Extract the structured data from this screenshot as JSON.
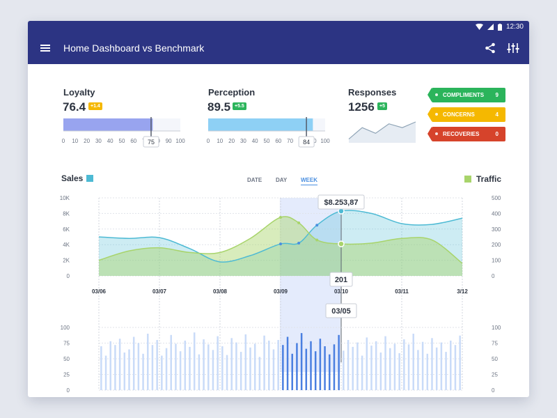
{
  "status": {
    "time": "12:30"
  },
  "header": {
    "title": "Home Dashboard vs Benchmark"
  },
  "kpis": {
    "loyalty": {
      "label": "Loyalty",
      "value": "76.4",
      "delta": "+1.4",
      "bar_fraction": 0.764,
      "marker": 75,
      "marker_label": "75",
      "bar_color": "#98a4ef",
      "badge_color": "#f5b800"
    },
    "perception": {
      "label": "Perception",
      "value": "89.5",
      "delta": "+5.5",
      "bar_fraction": 0.895,
      "marker": 84,
      "marker_label": "84",
      "bar_color": "#8ed0f5",
      "badge_color": "#2bb45b"
    },
    "responses": {
      "label": "Responses",
      "value": "1256",
      "delta": "+5",
      "badge_color": "#2bb45b",
      "sparkline": [
        2,
        8,
        5,
        10,
        8,
        11
      ]
    },
    "scale_ticks": [
      "0",
      "10",
      "20",
      "30",
      "40",
      "50",
      "60",
      "70",
      "80",
      "90",
      "100"
    ]
  },
  "tags": [
    {
      "label": "COMPLIMENTS",
      "count": "9",
      "color": "#2bb45b"
    },
    {
      "label": "CONCERNS",
      "count": "4",
      "color": "#f5b800"
    },
    {
      "label": "RECOVERIES",
      "count": "0",
      "color": "#d6432b"
    }
  ],
  "section": {
    "sales_label": "Sales",
    "sales_color": "#4dbad4",
    "traffic_label": "Traffic",
    "traffic_color": "#a8d46b",
    "tabs": [
      "DATE",
      "DAY",
      "WEEK"
    ],
    "active_tab": "WEEK"
  },
  "chart_data": [
    {
      "type": "area",
      "categories": [
        "03/06",
        "03/07",
        "03/08",
        "03/09",
        "03/10",
        "03/11",
        "3/12"
      ],
      "y_left_ticks": [
        "0",
        "2K",
        "4K",
        "6K",
        "8K",
        "10K"
      ],
      "y_right_ticks": [
        "0",
        "100",
        "200",
        "300",
        "400",
        "500"
      ],
      "ylim_left": [
        0,
        10000
      ],
      "ylim_right": [
        0,
        500
      ],
      "series": [
        {
          "name": "Sales",
          "x": [
            0,
            0.5,
            1,
            1.5,
            2,
            2.5,
            3,
            3.3,
            3.6,
            4,
            4.5,
            5,
            5.5,
            6
          ],
          "values": [
            5000,
            4800,
            4900,
            3500,
            1800,
            2600,
            4100,
            4200,
            6500,
            8300,
            8000,
            6700,
            6600,
            7400
          ]
        },
        {
          "name": "Traffic",
          "x": [
            0,
            0.5,
            1,
            1.5,
            2,
            2.5,
            3,
            3.3,
            3.6,
            4,
            4.5,
            5,
            5.5,
            6
          ],
          "values": [
            100,
            160,
            180,
            150,
            150,
            240,
            375,
            340,
            230,
            205,
            210,
            240,
            230,
            80
          ]
        }
      ],
      "tooltip_sales": "$8.253,87",
      "tooltip_traffic": "201",
      "highlight_label": "03/05",
      "highlight_x": 3.7
    },
    {
      "type": "bar",
      "y_ticks": [
        "0",
        "25",
        "50",
        "75",
        "100"
      ],
      "ylim": [
        0,
        100
      ],
      "values": [
        70,
        55,
        78,
        72,
        82,
        60,
        65,
        85,
        75,
        58,
        90,
        72,
        80,
        55,
        67,
        88,
        74,
        62,
        79,
        69,
        92,
        57,
        81,
        73,
        64,
        86,
        70,
        56,
        83,
        76,
        61,
        89,
        68,
        74,
        53,
        87,
        79,
        65,
        80,
        72,
        85,
        58,
        75,
        91,
        66,
        78,
        62,
        82,
        70,
        57,
        73,
        88,
        63,
        80,
        69,
        76,
        55,
        84,
        71,
        78,
        60,
        86,
        67,
        74,
        59,
        81,
        73,
        90,
        64,
        77,
        58,
        83,
        68,
        76,
        61,
        79,
        72,
        87
      ]
    }
  ]
}
